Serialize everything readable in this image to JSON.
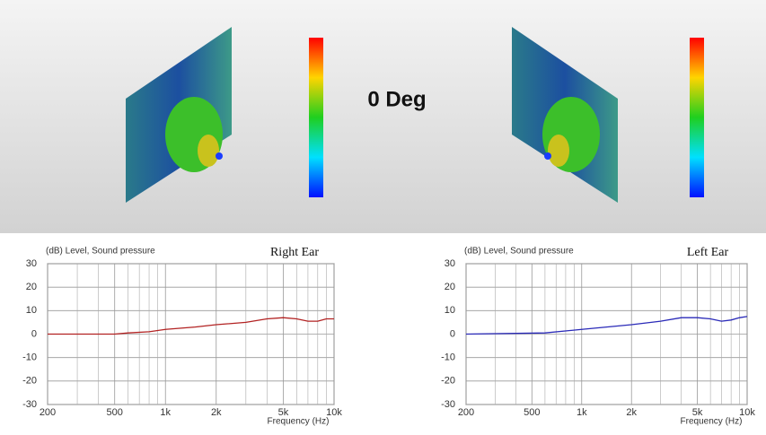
{
  "header": {
    "title": "0 Deg"
  },
  "chart_data": [
    {
      "type": "line",
      "title": "Right Ear",
      "y_label": "(dB)  Level, Sound pressure",
      "x_label": "Frequency  (Hz)",
      "x": [
        200,
        500,
        600,
        800,
        1000,
        1500,
        2000,
        3000,
        4000,
        5000,
        6000,
        7000,
        8000,
        9000,
        10000
      ],
      "series": [
        {
          "name": "Right Ear",
          "color": "#b22222",
          "values": [
            0,
            0,
            0.5,
            1,
            2,
            3,
            4,
            5,
            6.5,
            7,
            6.5,
            5.5,
            5.5,
            6.5,
            6.5
          ]
        }
      ],
      "xlim": [
        200,
        10000
      ],
      "log_x": true,
      "xticks": [
        200,
        500,
        {
          "value": 1000,
          "label": "1k"
        },
        {
          "value": 2000,
          "label": "2k"
        },
        {
          "value": 5000,
          "label": "5k"
        },
        {
          "value": 10000,
          "label": "10k"
        }
      ],
      "xminorticks": [
        300,
        400,
        600,
        700,
        800,
        900,
        3000,
        4000,
        6000,
        7000,
        8000,
        9000
      ],
      "ylim": [
        -30,
        30
      ],
      "yticks": [
        -30,
        -20,
        -10,
        0,
        10,
        20,
        30
      ],
      "grid": true
    },
    {
      "type": "line",
      "title": "Left Ear",
      "y_label": "(dB)  Level, Sound pressure",
      "x_label": "Frequency  (Hz)",
      "x": [
        200,
        600,
        1000,
        2000,
        3000,
        4000,
        5000,
        6000,
        7000,
        8000,
        9000,
        10000
      ],
      "series": [
        {
          "name": "Left Ear",
          "color": "#2a2ab8",
          "values": [
            0,
            0.5,
            2,
            4,
            5.5,
            7,
            7,
            6.5,
            5.5,
            6,
            7,
            7.5
          ]
        }
      ],
      "xlim": [
        200,
        10000
      ],
      "log_x": true,
      "xticks": [
        200,
        500,
        {
          "value": 1000,
          "label": "1k"
        },
        {
          "value": 2000,
          "label": "2k"
        },
        {
          "value": 5000,
          "label": "5k"
        },
        {
          "value": 10000,
          "label": "10k"
        }
      ],
      "xminorticks": [
        300,
        400,
        600,
        700,
        800,
        900,
        3000,
        4000,
        6000,
        7000,
        8000,
        9000
      ],
      "ylim": [
        -30,
        30
      ],
      "yticks": [
        -30,
        -20,
        -10,
        0,
        10,
        20,
        30
      ],
      "grid": true
    }
  ]
}
